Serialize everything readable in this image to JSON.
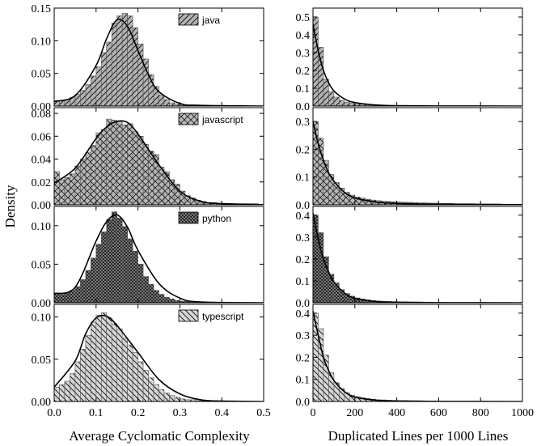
{
  "figure": {
    "ylabel": "Density",
    "left_xlabel": "Average Cyclomatic Complexity",
    "right_xlabel": "Duplicated Lines per 1000 Lines"
  },
  "chart_data": [
    {
      "type": "histogram",
      "language": "java",
      "xlabel": "Average Cyclomatic Complexity",
      "ylabel": "Density",
      "xlim": [
        0.0,
        0.5
      ],
      "ylim": [
        0.0,
        0.15
      ],
      "yticks": [
        0.0,
        0.05,
        0.1,
        0.15
      ],
      "bin_width": 0.0125,
      "bar_color": "#b3b3b3",
      "values": [
        0.007,
        0.008,
        0.01,
        0.013,
        0.018,
        0.024,
        0.033,
        0.046,
        0.06,
        0.082,
        0.098,
        0.127,
        0.138,
        0.142,
        0.138,
        0.12,
        0.095,
        0.072,
        0.048,
        0.03,
        0.017,
        0.01,
        0.005,
        0.003,
        0.002,
        0.001,
        0.001,
        0.0005,
        0.0005,
        0.0005,
        0.0003,
        0.0003,
        0.0002,
        0.0002,
        0.0001,
        0.0001,
        0.0001,
        0.0001,
        0.0001,
        0.0001
      ],
      "fit_curve": [
        [
          0.0,
          0.007
        ],
        [
          0.05,
          0.016
        ],
        [
          0.1,
          0.062
        ],
        [
          0.125,
          0.103
        ],
        [
          0.15,
          0.132
        ],
        [
          0.175,
          0.122
        ],
        [
          0.2,
          0.085
        ],
        [
          0.225,
          0.048
        ],
        [
          0.25,
          0.022
        ],
        [
          0.3,
          0.004
        ],
        [
          0.35,
          0.001
        ],
        [
          0.5,
          0.0
        ]
      ]
    },
    {
      "type": "histogram",
      "language": "java",
      "xlabel": "Duplicated Lines per 1000 Lines",
      "ylabel": "Density",
      "xlim": [
        0,
        1000
      ],
      "ylim": [
        0.0,
        0.55
      ],
      "yticks": [
        0.0,
        0.1,
        0.2,
        0.3,
        0.4,
        0.5
      ],
      "bin_width": 25,
      "bar_color": "#b3b3b3",
      "values": [
        0.5,
        0.33,
        0.15,
        0.08,
        0.05,
        0.032,
        0.022,
        0.016,
        0.012,
        0.01,
        0.007,
        0.005,
        0.004,
        0.003,
        0.003,
        0.002,
        0.002,
        0.002,
        0.001,
        0.001,
        0.001,
        0.001,
        0.001,
        0.001,
        0.0005,
        0.0005,
        0.0005,
        0.0005,
        0.0005,
        0.0005,
        0.0005,
        0.0003,
        0.0003,
        0.0003,
        0.0003,
        0.0003,
        0.0003,
        0.0003,
        0.0003,
        0.0003
      ],
      "fit_curve": [
        [
          0,
          0.46
        ],
        [
          25,
          0.31
        ],
        [
          50,
          0.2
        ],
        [
          75,
          0.13
        ],
        [
          100,
          0.085
        ],
        [
          150,
          0.04
        ],
        [
          200,
          0.02
        ],
        [
          300,
          0.006
        ],
        [
          400,
          0.002
        ],
        [
          600,
          0.0005
        ],
        [
          1000,
          0.0
        ]
      ]
    },
    {
      "type": "histogram",
      "language": "javascript",
      "xlabel": "Average Cyclomatic Complexity",
      "ylabel": "Density",
      "xlim": [
        0.0,
        0.5
      ],
      "ylim": [
        0.0,
        0.085
      ],
      "yticks": [
        0.0,
        0.02,
        0.04,
        0.06,
        0.08
      ],
      "bin_width": 0.0125,
      "bar_color": "#b8b8b8",
      "values": [
        0.029,
        0.022,
        0.024,
        0.027,
        0.034,
        0.04,
        0.046,
        0.052,
        0.063,
        0.066,
        0.075,
        0.074,
        0.073,
        0.07,
        0.071,
        0.064,
        0.06,
        0.053,
        0.047,
        0.044,
        0.033,
        0.029,
        0.022,
        0.018,
        0.012,
        0.008,
        0.006,
        0.004,
        0.003,
        0.002,
        0.002,
        0.001,
        0.001,
        0.001,
        0.001,
        0.001,
        0.001,
        0.001,
        0.001,
        0.0005
      ],
      "fit_curve": [
        [
          0.0,
          0.019
        ],
        [
          0.05,
          0.032
        ],
        [
          0.1,
          0.058
        ],
        [
          0.125,
          0.068
        ],
        [
          0.15,
          0.073
        ],
        [
          0.175,
          0.072
        ],
        [
          0.2,
          0.062
        ],
        [
          0.25,
          0.035
        ],
        [
          0.3,
          0.012
        ],
        [
          0.35,
          0.003
        ],
        [
          0.4,
          0.001
        ],
        [
          0.5,
          0.0
        ]
      ]
    },
    {
      "type": "histogram",
      "language": "javascript",
      "xlabel": "Duplicated Lines per 1000 Lines",
      "ylabel": "Density",
      "xlim": [
        0,
        1000
      ],
      "ylim": [
        0.0,
        0.35
      ],
      "yticks": [
        0.0,
        0.1,
        0.2,
        0.3
      ],
      "bin_width": 25,
      "bar_color": "#b8b8b8",
      "values": [
        0.3,
        0.24,
        0.16,
        0.11,
        0.08,
        0.06,
        0.045,
        0.035,
        0.028,
        0.024,
        0.02,
        0.017,
        0.015,
        0.013,
        0.012,
        0.011,
        0.01,
        0.009,
        0.009,
        0.008,
        0.007,
        0.007,
        0.006,
        0.006,
        0.005,
        0.005,
        0.005,
        0.004,
        0.004,
        0.004,
        0.004,
        0.003,
        0.003,
        0.003,
        0.003,
        0.003,
        0.002,
        0.002,
        0.002,
        0.002
      ],
      "fit_curve": [
        [
          0,
          0.3
        ],
        [
          25,
          0.22
        ],
        [
          50,
          0.16
        ],
        [
          75,
          0.115
        ],
        [
          100,
          0.085
        ],
        [
          150,
          0.045
        ],
        [
          200,
          0.025
        ],
        [
          300,
          0.01
        ],
        [
          400,
          0.005
        ],
        [
          600,
          0.002
        ],
        [
          1000,
          0.0005
        ]
      ]
    },
    {
      "type": "histogram",
      "language": "python",
      "xlabel": "Average Cyclomatic Complexity",
      "ylabel": "Density",
      "xlim": [
        0.0,
        0.5
      ],
      "ylim": [
        0.0,
        0.125
      ],
      "yticks": [
        0.0,
        0.05,
        0.1
      ],
      "bin_width": 0.0125,
      "bar_color": "#8c8c8c",
      "values": [
        0.012,
        0.011,
        0.013,
        0.016,
        0.021,
        0.03,
        0.042,
        0.058,
        0.076,
        0.092,
        0.108,
        0.118,
        0.11,
        0.099,
        0.083,
        0.067,
        0.05,
        0.034,
        0.024,
        0.016,
        0.011,
        0.007,
        0.005,
        0.003,
        0.002,
        0.002,
        0.001,
        0.001,
        0.001,
        0.0005,
        0.0005,
        0.0005,
        0.0003,
        0.0003,
        0.0003,
        0.0003,
        0.0003,
        0.0002,
        0.0002,
        0.0002
      ],
      "fit_curve": [
        [
          0.0,
          0.012
        ],
        [
          0.05,
          0.02
        ],
        [
          0.1,
          0.08
        ],
        [
          0.125,
          0.105
        ],
        [
          0.15,
          0.114
        ],
        [
          0.175,
          0.098
        ],
        [
          0.2,
          0.068
        ],
        [
          0.25,
          0.025
        ],
        [
          0.3,
          0.006
        ],
        [
          0.35,
          0.001
        ],
        [
          0.5,
          0.0
        ]
      ]
    },
    {
      "type": "histogram",
      "language": "python",
      "xlabel": "Duplicated Lines per 1000 Lines",
      "ylabel": "Density",
      "xlim": [
        0,
        1000
      ],
      "ylim": [
        0.0,
        0.44
      ],
      "yticks": [
        0.0,
        0.1,
        0.2,
        0.3,
        0.4
      ],
      "bin_width": 25,
      "bar_color": "#8c8c8c",
      "values": [
        0.4,
        0.32,
        0.21,
        0.13,
        0.09,
        0.06,
        0.042,
        0.03,
        0.022,
        0.017,
        0.013,
        0.01,
        0.008,
        0.007,
        0.006,
        0.005,
        0.004,
        0.004,
        0.003,
        0.003,
        0.003,
        0.002,
        0.002,
        0.002,
        0.002,
        0.001,
        0.001,
        0.001,
        0.001,
        0.001,
        0.001,
        0.001,
        0.001,
        0.0005,
        0.0005,
        0.0005,
        0.0005,
        0.0005,
        0.0005,
        0.0005
      ],
      "fit_curve": [
        [
          0,
          0.41
        ],
        [
          25,
          0.29
        ],
        [
          50,
          0.2
        ],
        [
          75,
          0.14
        ],
        [
          100,
          0.095
        ],
        [
          150,
          0.045
        ],
        [
          200,
          0.02
        ],
        [
          300,
          0.006
        ],
        [
          400,
          0.002
        ],
        [
          600,
          0.0005
        ],
        [
          1000,
          0.0
        ]
      ]
    },
    {
      "type": "histogram",
      "language": "typescript",
      "xlabel": "Average Cyclomatic Complexity",
      "ylabel": "Density",
      "xlim": [
        0.0,
        0.5
      ],
      "ylim": [
        0.0,
        0.115
      ],
      "yticks": [
        0.0,
        0.05,
        0.1
      ],
      "bin_width": 0.0125,
      "bar_color": "#d6d6d6",
      "values": [
        0.017,
        0.02,
        0.024,
        0.033,
        0.047,
        0.062,
        0.078,
        0.094,
        0.102,
        0.105,
        0.099,
        0.092,
        0.086,
        0.075,
        0.067,
        0.058,
        0.047,
        0.037,
        0.028,
        0.02,
        0.014,
        0.01,
        0.007,
        0.005,
        0.003,
        0.002,
        0.002,
        0.001,
        0.001,
        0.001,
        0.0005,
        0.0005,
        0.0005,
        0.0003,
        0.0003,
        0.0003,
        0.0003,
        0.0002,
        0.0002,
        0.0002
      ],
      "fit_curve": [
        [
          0.0,
          0.017
        ],
        [
          0.05,
          0.048
        ],
        [
          0.075,
          0.08
        ],
        [
          0.1,
          0.099
        ],
        [
          0.125,
          0.101
        ],
        [
          0.15,
          0.09
        ],
        [
          0.2,
          0.058
        ],
        [
          0.25,
          0.026
        ],
        [
          0.3,
          0.009
        ],
        [
          0.35,
          0.002
        ],
        [
          0.4,
          0.0005
        ],
        [
          0.5,
          0.0
        ]
      ]
    },
    {
      "type": "histogram",
      "language": "typescript",
      "xlabel": "Duplicated Lines per 1000 Lines",
      "ylabel": "Density",
      "xlim": [
        0,
        1000
      ],
      "ylim": [
        0.0,
        0.44
      ],
      "yticks": [
        0.0,
        0.1,
        0.2,
        0.3,
        0.4
      ],
      "bin_width": 25,
      "bar_color": "#d6d6d6",
      "values": [
        0.4,
        0.33,
        0.21,
        0.13,
        0.085,
        0.058,
        0.04,
        0.029,
        0.022,
        0.017,
        0.013,
        0.01,
        0.008,
        0.007,
        0.006,
        0.005,
        0.004,
        0.004,
        0.003,
        0.003,
        0.003,
        0.002,
        0.002,
        0.002,
        0.002,
        0.001,
        0.001,
        0.001,
        0.001,
        0.001,
        0.001,
        0.001,
        0.001,
        0.0005,
        0.0005,
        0.0005,
        0.0005,
        0.0005,
        0.0005,
        0.0005
      ],
      "fit_curve": [
        [
          0,
          0.41
        ],
        [
          25,
          0.3
        ],
        [
          50,
          0.2
        ],
        [
          75,
          0.14
        ],
        [
          100,
          0.095
        ],
        [
          150,
          0.045
        ],
        [
          200,
          0.02
        ],
        [
          300,
          0.006
        ],
        [
          400,
          0.002
        ],
        [
          600,
          0.0005
        ],
        [
          1000,
          0.0
        ]
      ]
    }
  ]
}
